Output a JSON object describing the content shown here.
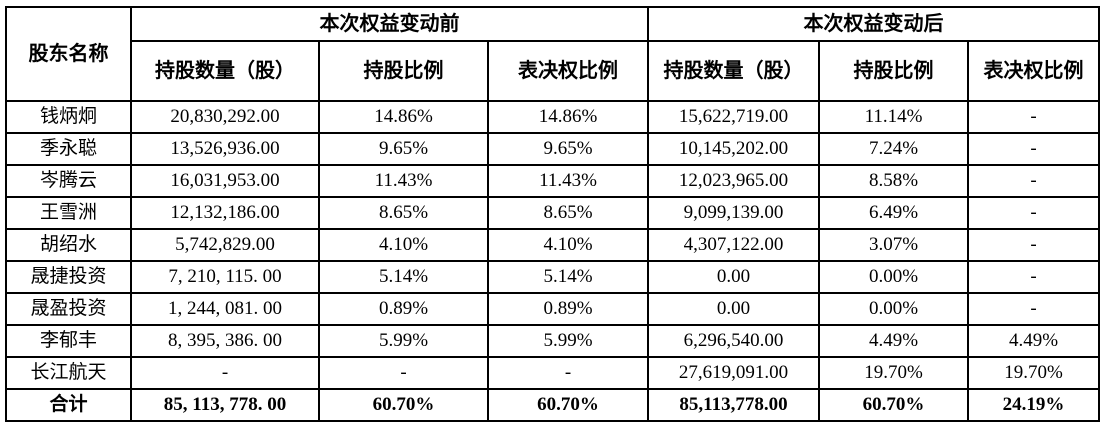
{
  "table": {
    "header": {
      "shareholder": "股东名称",
      "before_group": "本次权益变动前",
      "after_group": "本次权益变动后",
      "before_cols": [
        "持股数量（股）",
        "持股比例",
        "表决权比例"
      ],
      "after_cols": [
        "持股数量（股）",
        "持股比例",
        "表决权比例"
      ]
    },
    "rows": [
      {
        "name": "钱炳炯",
        "values": [
          "20,830,292.00",
          "14.86%",
          "14.86%",
          "15,622,719.00",
          "11.14%",
          "-"
        ]
      },
      {
        "name": "季永聪",
        "values": [
          "13,526,936.00",
          "9.65%",
          "9.65%",
          "10,145,202.00",
          "7.24%",
          "-"
        ]
      },
      {
        "name": "岑腾云",
        "values": [
          "16,031,953.00",
          "11.43%",
          "11.43%",
          "12,023,965.00",
          "8.58%",
          "-"
        ]
      },
      {
        "name": "王雪洲",
        "values": [
          "12,132,186.00",
          "8.65%",
          "8.65%",
          "9,099,139.00",
          "6.49%",
          "-"
        ]
      },
      {
        "name": "胡绍水",
        "values": [
          "5,742,829.00",
          "4.10%",
          "4.10%",
          "4,307,122.00",
          "3.07%",
          "-"
        ]
      },
      {
        "name": "晟捷投资",
        "values": [
          "7, 210, 115. 00",
          "5.14%",
          "5.14%",
          "0.00",
          "0.00%",
          "-"
        ]
      },
      {
        "name": "晟盈投资",
        "values": [
          "1, 244, 081. 00",
          "0.89%",
          "0.89%",
          "0.00",
          "0.00%",
          "-"
        ]
      },
      {
        "name": "李郁丰",
        "values": [
          "8, 395, 386. 00",
          "5.99%",
          "5.99%",
          "6,296,540.00",
          "4.49%",
          "4.49%"
        ]
      },
      {
        "name": "长江航天",
        "values": [
          "-",
          "-",
          "-",
          "27,619,091.00",
          "19.70%",
          "19.70%"
        ]
      },
      {
        "name": "合计",
        "values": [
          "85, 113, 778. 00",
          "60.70%",
          "60.70%",
          "85,113,778.00",
          "60.70%",
          "24.19%"
        ],
        "bold": true
      }
    ]
  }
}
